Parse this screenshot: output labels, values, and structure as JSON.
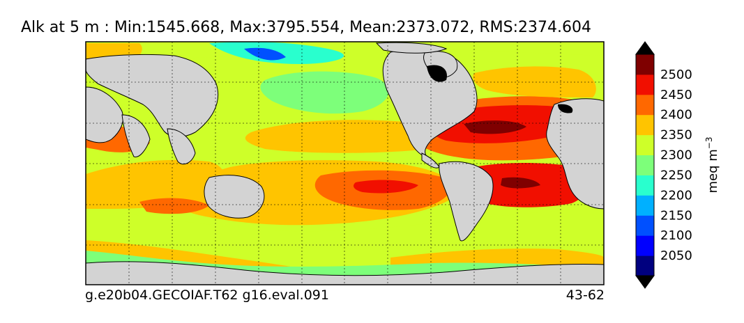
{
  "title": "Alk at 5 m : Min:1545.668, Max:3795.554, Mean:2373.072, RMS:2374.604",
  "footer": {
    "case_name": "g.e20b04.GECOIAF.T62 g16.eval.091",
    "years": "43-62"
  },
  "colorbar": {
    "unit_text": "meq m",
    "unit_exp": "−3",
    "levels": [
      {
        "value": "2050",
        "color": "#00007f"
      },
      {
        "value": "2100",
        "color": "#0000ff"
      },
      {
        "value": "2150",
        "color": "#0050ff"
      },
      {
        "value": "2200",
        "color": "#00b0ff"
      },
      {
        "value": "2250",
        "color": "#29ffce"
      },
      {
        "value": "2300",
        "color": "#7dff7a"
      },
      {
        "value": "2350",
        "color": "#ceff29"
      },
      {
        "value": "2400",
        "color": "#ffc400"
      },
      {
        "value": "2450",
        "color": "#ff6800"
      },
      {
        "value": "2500",
        "color": "#f10f00"
      }
    ],
    "under_color": "#000000",
    "over_color": "#000000",
    "top_color": "#7f0000"
  },
  "map": {
    "projection": "cylindrical",
    "land_color": "#d3d3d3",
    "grid": true
  }
}
